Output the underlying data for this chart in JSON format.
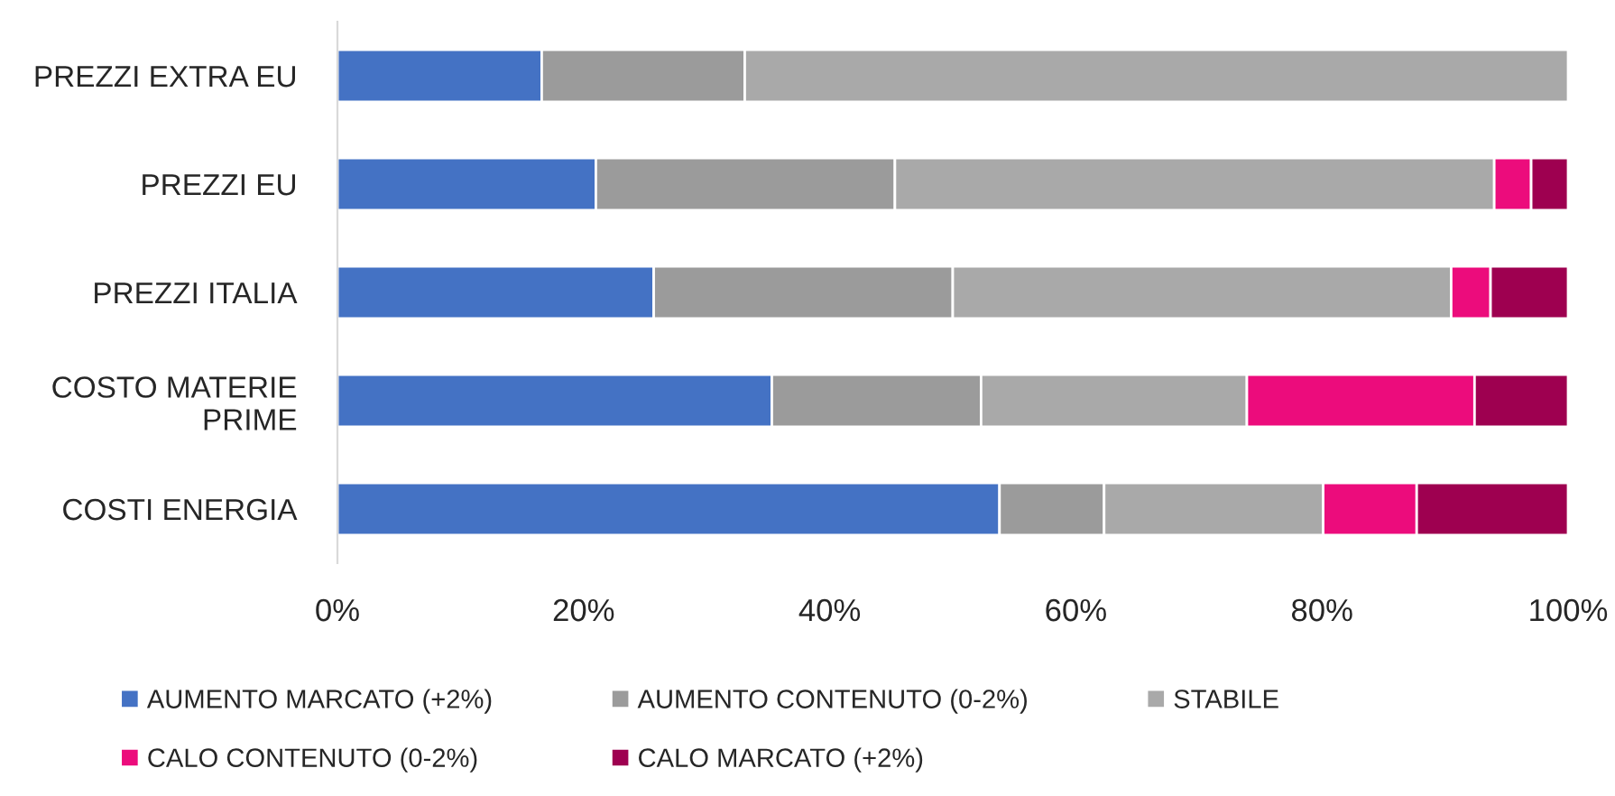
{
  "chart_data": {
    "type": "bar",
    "orientation": "horizontal",
    "stacked": true,
    "categories": [
      "PREZZI EXTRA EU",
      "PREZZI EU",
      "PREZZI ITALIA",
      "COSTO MATERIE PRIME",
      "COSTI ENERGIA"
    ],
    "series": [
      {
        "name": "AUMENTO MARCATO (+2%)",
        "color": "#4472c4",
        "values": [
          16.6,
          21.0,
          25.7,
          35.3,
          53.8
        ]
      },
      {
        "name": "AUMENTO CONTENUTO (0-2%)",
        "color": "#9b9b9b",
        "values": [
          16.5,
          24.3,
          24.3,
          17.0,
          8.5
        ]
      },
      {
        "name": "STABILE",
        "color": "#a9a9a9",
        "values": [
          66.9,
          48.7,
          40.5,
          21.6,
          17.8
        ]
      },
      {
        "name": "CALO CONTENUTO (0-2%)",
        "color": "#ec0c7c",
        "values": [
          null,
          3.0,
          3.2,
          18.5,
          7.6
        ]
      },
      {
        "name": "CALO MARCATO (+2%)",
        "color": "#9e0050",
        "values": [
          null,
          3.0,
          6.3,
          7.6,
          12.3
        ]
      }
    ],
    "xlim": [
      0,
      100
    ],
    "xticks": [
      {
        "value": 0,
        "label": "0%"
      },
      {
        "value": 20,
        "label": "20%"
      },
      {
        "value": 40,
        "label": "40%"
      },
      {
        "value": 60,
        "label": "60%"
      },
      {
        "value": 80,
        "label": "80%"
      },
      {
        "value": 100,
        "label": "100%"
      }
    ],
    "legend": "bottom",
    "grid": false
  }
}
